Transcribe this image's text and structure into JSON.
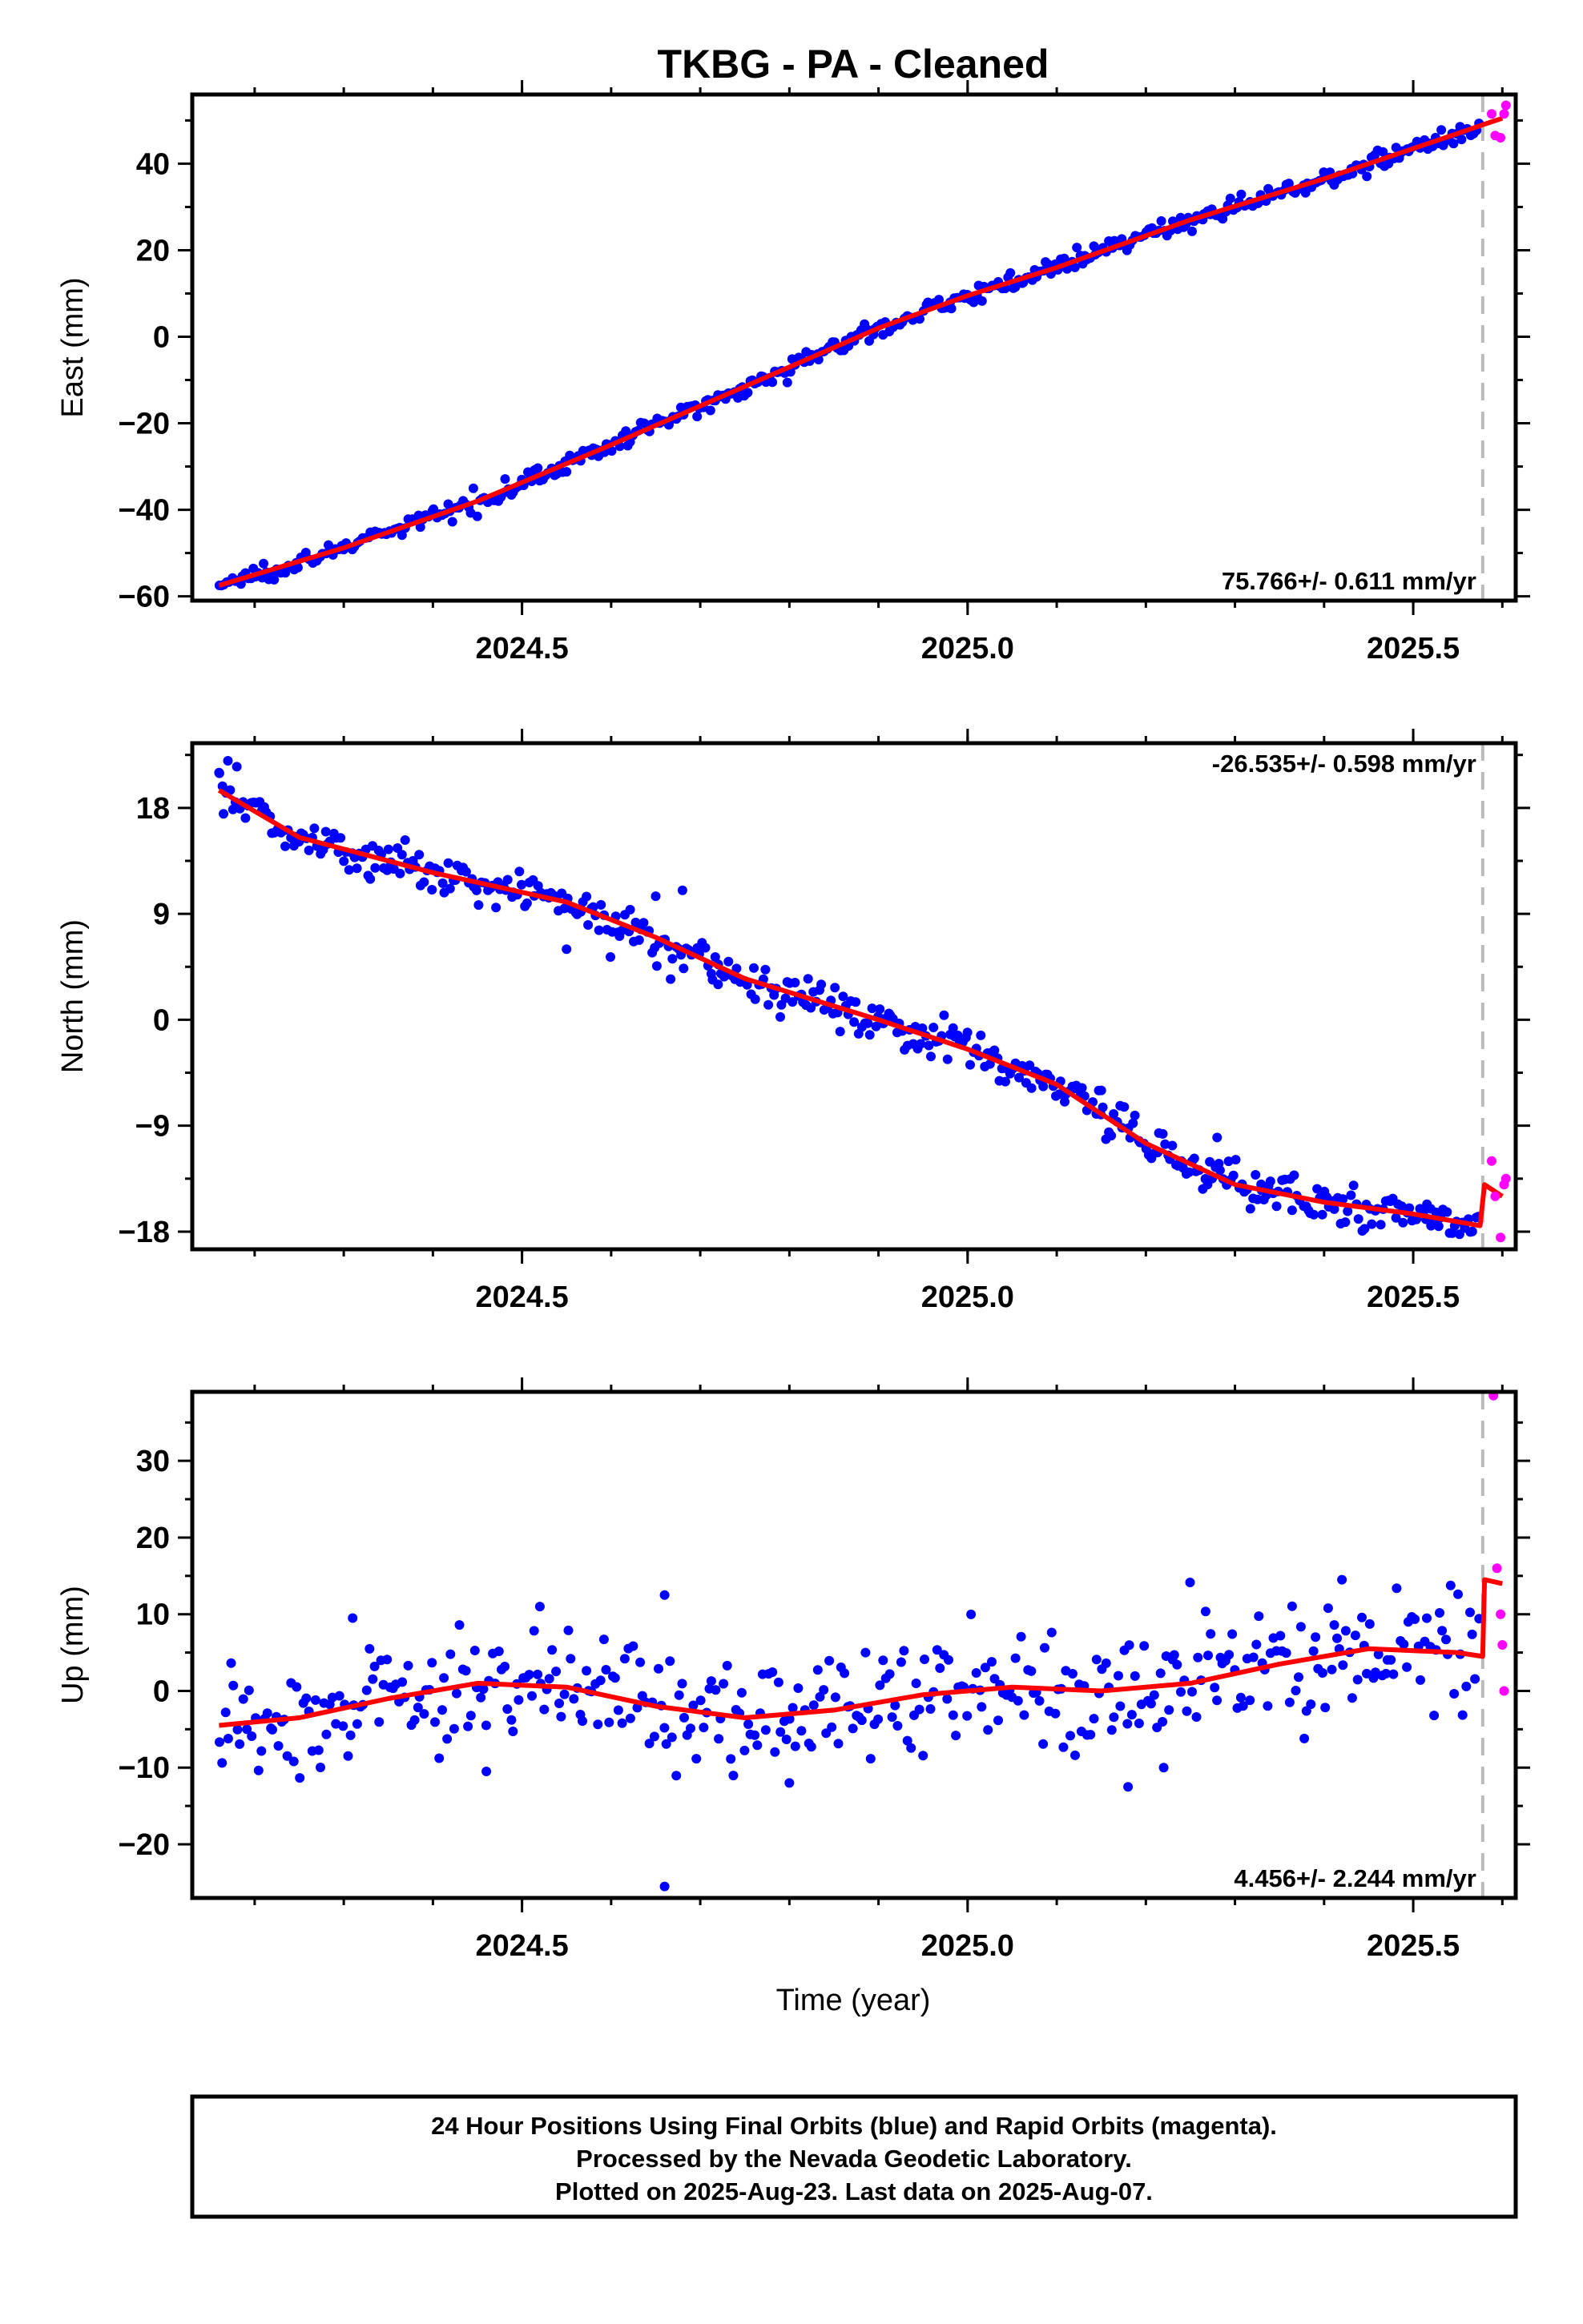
{
  "title": "TKBG  - PA - Cleaned",
  "xlabel": "Time (year)",
  "footer": {
    "line1": "24 Hour Positions Using Final Orbits (blue) and Rapid Orbits (magenta).",
    "line2": "Processed by the Nevada Geodetic Laboratory.",
    "line3": "Plotted on 2025-Aug-23. Last data on 2025-Aug-07."
  },
  "colors": {
    "final_orbits": "#0000ff",
    "rapid_orbits": "#ff00ff",
    "model": "#ff0000",
    "equipment_change": "#bbbbbb"
  },
  "chart_data": [
    {
      "type": "scatter",
      "panel": "east",
      "ylabel": "East (mm)",
      "xlim": [
        2024.13,
        2025.615
      ],
      "ylim": [
        -61,
        56
      ],
      "xticks": [
        2024.5,
        2025.0,
        2025.5
      ],
      "xtick_labels": [
        "2024.5",
        "2025.0",
        "2025.5"
      ],
      "yticks": [
        -60,
        -40,
        -20,
        0,
        20,
        40
      ],
      "ytick_labels": [
        "−60",
        "−40",
        "−20",
        "0",
        "20",
        "40"
      ],
      "rate_label": "75.766+/- 0.611 mm/yr",
      "equipment_change_x": 2025.578,
      "model": {
        "x": [
          2024.16,
          2024.3,
          2024.45,
          2024.6,
          2024.75,
          2024.9,
          2025.0,
          2025.1,
          2025.25,
          2025.4,
          2025.55,
          2025.578,
          2025.6
        ],
        "y": [
          -57.5,
          -48.8,
          -38.0,
          -25.0,
          -11.5,
          2.0,
          9.5,
          16.0,
          27.0,
          36.5,
          47.0,
          49.0,
          50.5
        ]
      },
      "scatter": {
        "n": 475,
        "noise": 1.0,
        "spikes": []
      },
      "rapid": {
        "x": [
          2025.588,
          2025.592,
          2025.598,
          2025.602,
          2025.604
        ],
        "y": [
          51.5,
          46.5,
          46.0,
          51.5,
          53.5
        ]
      }
    },
    {
      "type": "scatter",
      "panel": "north",
      "ylabel": "North (mm)",
      "xlim": [
        2024.13,
        2025.615
      ],
      "ylim": [
        -19.5,
        23.5
      ],
      "xticks": [
        2024.5,
        2025.0,
        2025.5
      ],
      "xtick_labels": [
        "2024.5",
        "2025.0",
        "2025.5"
      ],
      "yticks": [
        -18,
        -9,
        0,
        9,
        18
      ],
      "ytick_labels": [
        "−18",
        "−9",
        "0",
        "9",
        "18"
      ],
      "rate_label": "-26.535+/- 0.598 mm/yr",
      "equipment_change_x": 2025.578,
      "model": {
        "x": [
          2024.16,
          2024.25,
          2024.4,
          2024.55,
          2024.65,
          2024.75,
          2024.9,
          2025.0,
          2025.1,
          2025.2,
          2025.3,
          2025.4,
          2025.5,
          2025.575,
          2025.58,
          2025.6
        ],
        "y": [
          19.5,
          15.5,
          12.5,
          10.0,
          7.0,
          3.5,
          0.0,
          -2.5,
          -5.5,
          -10.5,
          -14.0,
          -15.5,
          -16.5,
          -17.5,
          -14.0,
          -15.0
        ]
      },
      "scatter": {
        "n": 475,
        "noise": 0.9,
        "spikes": [
          [
            2024.16,
            21.0
          ],
          [
            2024.17,
            22.0
          ],
          [
            2024.18,
            21.5
          ],
          [
            2024.55,
            6.0
          ],
          [
            2024.65,
            10.5
          ],
          [
            2024.68,
            11.0
          ],
          [
            2024.72,
            3.0
          ],
          [
            2025.15,
            -6.0
          ],
          [
            2025.28,
            -10.0
          ],
          [
            2025.33,
            -14.5
          ],
          [
            2025.52,
            -17.5
          ]
        ]
      },
      "rapid": {
        "x": [
          2025.588,
          2025.592,
          2025.598,
          2025.602,
          2025.604
        ],
        "y": [
          -12.0,
          -15.0,
          -18.5,
          -14.0,
          -13.5
        ]
      }
    },
    {
      "type": "scatter",
      "panel": "up",
      "ylabel": "Up (mm)",
      "xlim": [
        2024.13,
        2025.615
      ],
      "ylim": [
        -27,
        39
      ],
      "xticks": [
        2024.5,
        2025.0,
        2025.5
      ],
      "xtick_labels": [
        "2024.5",
        "2025.0",
        "2025.5"
      ],
      "yticks": [
        -20,
        -10,
        0,
        10,
        20,
        30
      ],
      "ytick_labels": [
        "−20",
        "−10",
        "0",
        "10",
        "20",
        "30"
      ],
      "rate_label": "4.456+/- 2.244 mm/yr",
      "equipment_change_x": 2025.578,
      "model": {
        "x": [
          2024.16,
          2024.25,
          2024.35,
          2024.45,
          2024.55,
          2024.65,
          2024.75,
          2024.85,
          2024.95,
          2025.05,
          2025.15,
          2025.25,
          2025.35,
          2025.45,
          2025.55,
          2025.578,
          2025.58,
          2025.6
        ],
        "y": [
          -4.5,
          -3.5,
          -1.0,
          1.0,
          0.5,
          -2.0,
          -3.5,
          -2.5,
          -0.5,
          0.5,
          0.0,
          1.0,
          3.5,
          5.5,
          5.0,
          4.5,
          14.5,
          14.0
        ]
      },
      "scatter": {
        "n": 420,
        "noise": 3.8,
        "spikes": [
          [
            2024.66,
            12.5
          ],
          [
            2024.66,
            -25.5
          ],
          [
            2024.46,
            -10.5
          ],
          [
            2024.8,
            -12.0
          ],
          [
            2025.18,
            -12.5
          ],
          [
            2025.22,
            -10.0
          ],
          [
            2025.42,
            14.5
          ],
          [
            2024.52,
            11.0
          ],
          [
            2024.31,
            9.5
          ]
        ]
      },
      "rapid": {
        "x": [
          2025.59,
          2025.594,
          2025.598,
          2025.6,
          2025.602
        ],
        "y": [
          38.5,
          16.0,
          10.0,
          6.0,
          0.0
        ]
      }
    }
  ]
}
